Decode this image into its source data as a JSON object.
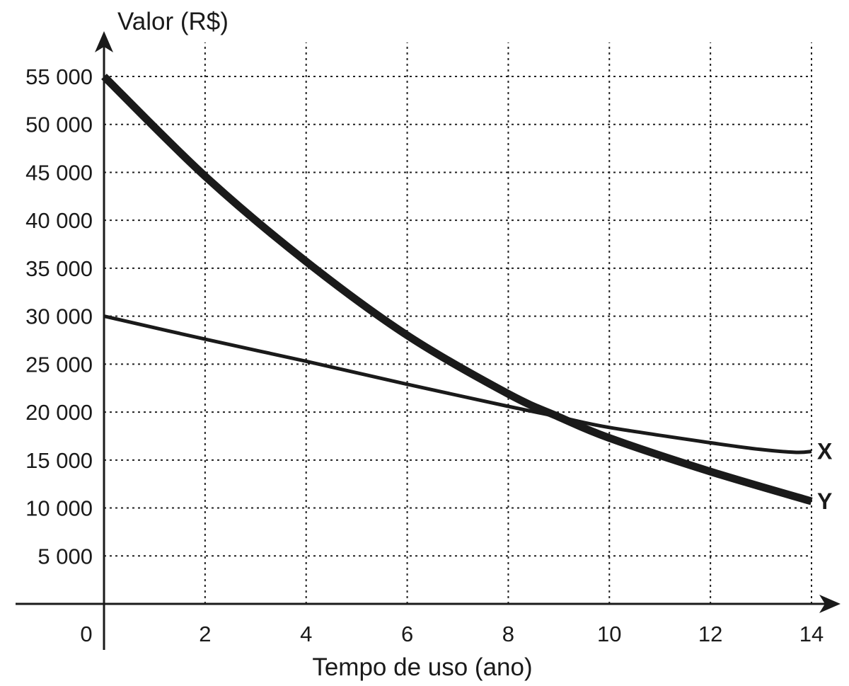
{
  "chart_data": {
    "type": "line",
    "title": "",
    "xlabel": "Tempo de uso (ano)",
    "ylabel": "Valor (R$)",
    "xlim": [
      0,
      14
    ],
    "ylim": [
      0,
      55000
    ],
    "x_ticks": [
      0,
      2,
      4,
      6,
      8,
      10,
      12,
      14
    ],
    "x_tick_labels": [
      "0",
      "2",
      "4",
      "6",
      "8",
      "10",
      "12",
      "14"
    ],
    "y_ticks": [
      5000,
      10000,
      15000,
      20000,
      25000,
      30000,
      35000,
      40000,
      45000,
      50000,
      55000
    ],
    "y_tick_labels": [
      "5 000",
      "10 000",
      "15 000",
      "20 000",
      "25 000",
      "30 000",
      "35 000",
      "40 000",
      "45 000",
      "50 000",
      "55 000"
    ],
    "grid": true,
    "series": [
      {
        "name": "X",
        "x": [
          0,
          2,
          4,
          6,
          8,
          9,
          10,
          12,
          13,
          13.7,
          14
        ],
        "values": [
          30000,
          27600,
          25300,
          22900,
          20600,
          19500,
          18400,
          16800,
          16100,
          15800,
          15900
        ],
        "line_weight": "thin",
        "color": "#1a1a1a"
      },
      {
        "name": "Y",
        "x": [
          0,
          2,
          4,
          6,
          8,
          9,
          10,
          12,
          14
        ],
        "values": [
          55000,
          44600,
          35700,
          28000,
          21900,
          19500,
          17300,
          13800,
          10700
        ],
        "line_weight": "thick",
        "color": "#1a1a1a"
      }
    ]
  }
}
